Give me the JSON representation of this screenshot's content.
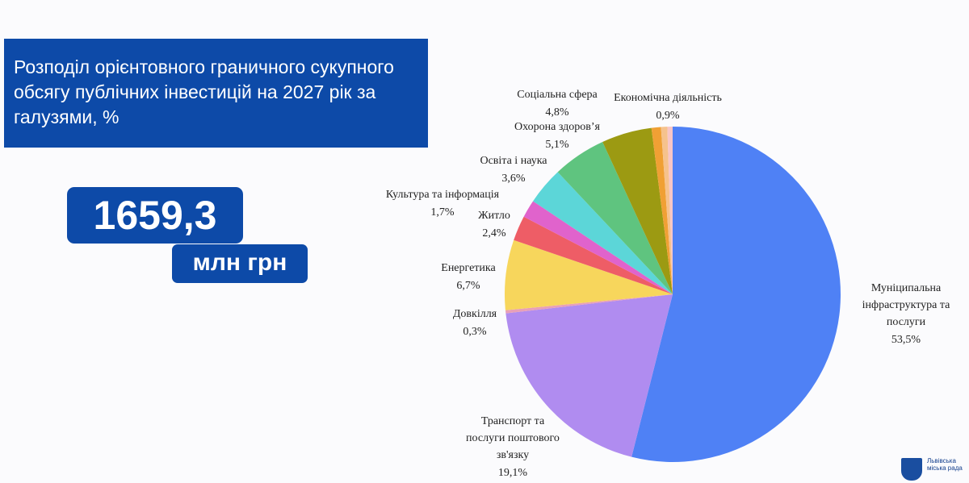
{
  "header": {
    "title": "Розподіл орієнтовного граничного сукупного обсягу публічних інвестицій на 2027 рік за галузями, %"
  },
  "total": {
    "value": "1659,3",
    "unit": "млн грн"
  },
  "logo": {
    "text": "Львівська міська рада"
  },
  "chart_data": {
    "type": "pie",
    "categories": [
      "Муніципальна\nінфраструктура та\nпослуги",
      "Транспорт та\nпослуги поштового\nзв'язку",
      "Довкілля",
      "Енергетика",
      "Житло",
      "Культура та інформація",
      "Освіта і наука",
      "Охорона здоров’я",
      "Соціальна сфера",
      "Економічна діяльність",
      null,
      null
    ],
    "values": [
      53.5,
      19.1,
      0.3,
      6.7,
      2.4,
      1.7,
      3.6,
      5.1,
      4.8,
      0.9,
      0.6,
      0.5
    ],
    "value_labels": [
      "53,5%",
      "19,1%",
      "0,3%",
      "6,7%",
      "2,4%",
      "1,7%",
      "3,6%",
      "5,1%",
      "4,8%",
      "0,9%",
      null,
      null
    ],
    "colors": [
      "#4f81f5",
      "#b08cf0",
      "#e8a0b8",
      "#f7d65c",
      "#ee5d66",
      "#e063cc",
      "#5cd6d8",
      "#5fc47f",
      "#9c9a12",
      "#f0a034",
      "#f6c28c",
      "#f8c6c6"
    ]
  }
}
